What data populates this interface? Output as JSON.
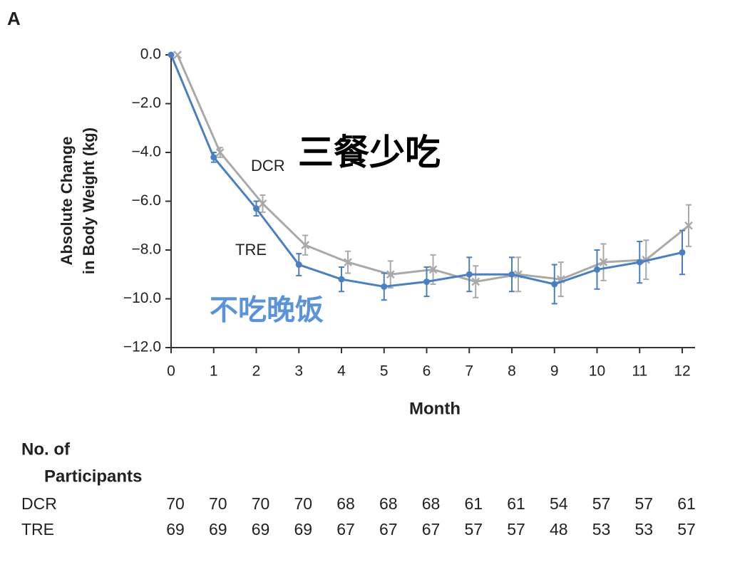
{
  "panel_label": "A",
  "chart_data": {
    "type": "line",
    "xlabel": "Month",
    "ylabel": [
      "Absolute Change",
      "in Body Weight (kg)"
    ],
    "x": [
      0,
      1,
      2,
      3,
      4,
      5,
      6,
      7,
      8,
      9,
      10,
      11,
      12
    ],
    "xlim": [
      0,
      12
    ],
    "xticks": [
      0,
      1,
      2,
      3,
      4,
      5,
      6,
      7,
      8,
      9,
      10,
      11,
      12
    ],
    "ylim": [
      -12,
      0
    ],
    "yticks": [
      {
        "value": 0,
        "label": "0.0"
      },
      {
        "value": -2,
        "label": "−2.0"
      },
      {
        "value": -4,
        "label": "−4.0"
      },
      {
        "value": -6,
        "label": "−6.0"
      },
      {
        "value": -8,
        "label": "−8.0"
      },
      {
        "value": -10,
        "label": "−10.0"
      },
      {
        "value": -12,
        "label": "−12.0"
      }
    ],
    "series": [
      {
        "name": "DCR",
        "color": "#a9a9a9",
        "marker": "x",
        "values": [
          0,
          -4.0,
          -6.1,
          -7.8,
          -8.5,
          -9.0,
          -8.8,
          -9.3,
          -9.0,
          -9.2,
          -8.5,
          -8.4,
          -7.0
        ],
        "errors": [
          0,
          0.2,
          0.35,
          0.4,
          0.45,
          0.55,
          0.6,
          0.65,
          0.7,
          0.7,
          0.75,
          0.8,
          0.85
        ]
      },
      {
        "name": "TRE",
        "color": "#4a7fc1",
        "marker": "circle",
        "values": [
          0,
          -4.2,
          -6.3,
          -8.6,
          -9.2,
          -9.5,
          -9.3,
          -9.0,
          -9.0,
          -9.4,
          -8.8,
          -8.5,
          -8.1
        ],
        "errors": [
          0,
          0.2,
          0.3,
          0.45,
          0.5,
          0.55,
          0.6,
          0.7,
          0.7,
          0.8,
          0.8,
          0.85,
          0.9
        ]
      }
    ],
    "annotations": [
      "三餐少吃",
      "不吃晚饭"
    ]
  },
  "participants": {
    "title": [
      "No. of",
      "Participants"
    ],
    "rows": [
      {
        "label": "DCR",
        "values": [
          70,
          70,
          70,
          70,
          68,
          68,
          68,
          61,
          61,
          54,
          57,
          57,
          61
        ]
      },
      {
        "label": "TRE",
        "values": [
          69,
          69,
          69,
          69,
          67,
          67,
          67,
          57,
          57,
          48,
          53,
          53,
          57
        ]
      }
    ]
  }
}
